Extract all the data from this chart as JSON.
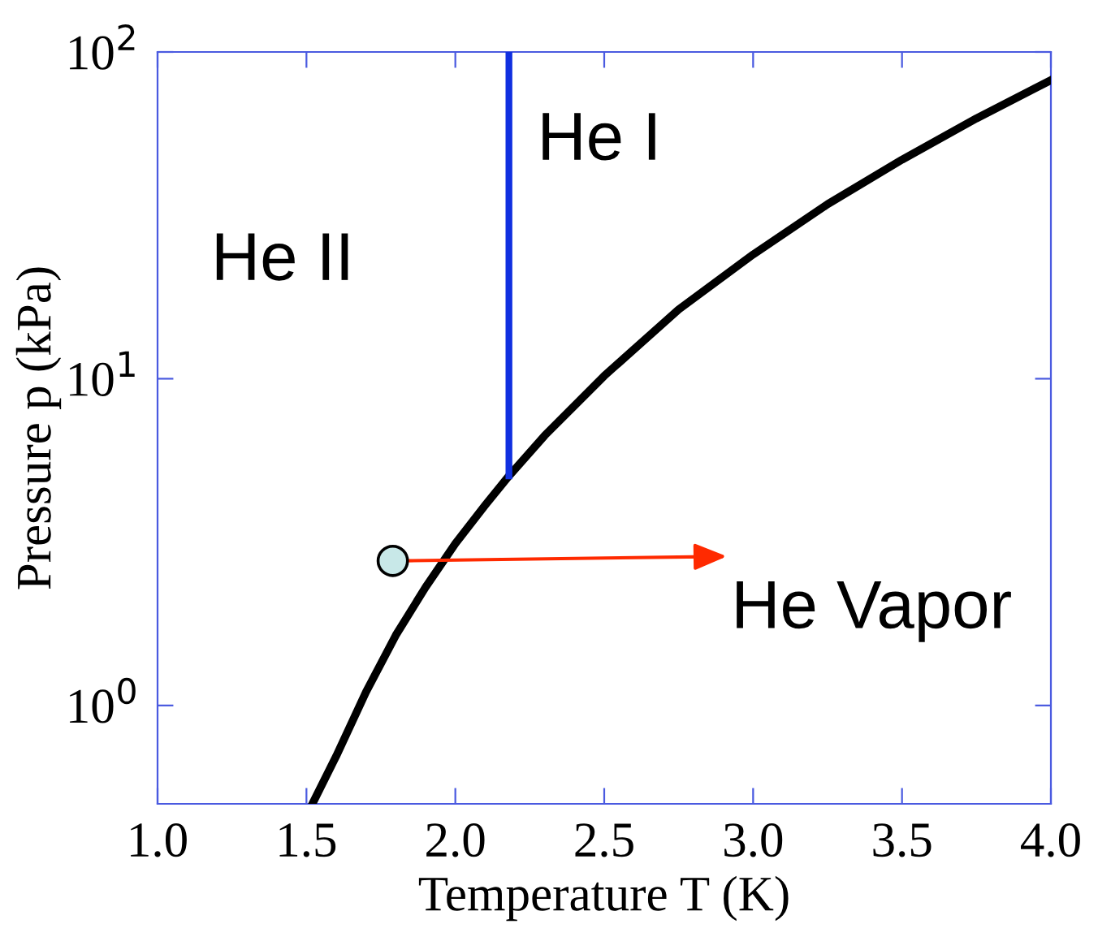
{
  "chart_data": {
    "type": "line",
    "xlabel": "Temperature T (K)",
    "ylabel": "Pressure p (kPa)",
    "log": "y",
    "xlim": [
      1.0,
      4.0
    ],
    "xticks": [
      {
        "value": 1.0,
        "label": "1.0"
      },
      {
        "value": 1.5,
        "label": "1.5"
      },
      {
        "value": 2.0,
        "label": "2.0"
      },
      {
        "value": 2.5,
        "label": "2.5"
      },
      {
        "value": 3.0,
        "label": "3.0"
      },
      {
        "value": 3.5,
        "label": "3.5"
      },
      {
        "value": 4.0,
        "label": "4.0"
      }
    ],
    "ylim": [
      0.5,
      100
    ],
    "yticks": [
      {
        "value": 1,
        "label": "10$^{0}$"
      },
      {
        "value": 10,
        "label": "10$^{1}$"
      },
      {
        "value": 100,
        "label": "10$^{2}$"
      }
    ],
    "grid": false,
    "series": [
      {
        "color": "#000000",
        "x": [
          1.52,
          1.6,
          1.7,
          1.8,
          1.9,
          2.0,
          2.1,
          2.18,
          2.3,
          2.5,
          2.75,
          3.0,
          3.25,
          3.5,
          3.75,
          4.0
        ],
        "values": [
          0.5,
          0.7,
          1.1,
          1.64,
          2.3,
          3.13,
          4.1,
          5.04,
          6.7,
          10.2,
          16.3,
          24.0,
          34.2,
          46.8,
          62.6,
          82.0
        ]
      },
      {
        "color": "#1030e0",
        "x": [
          2.18,
          2.18
        ],
        "values": [
          5.04,
          100
        ]
      },
      {
        "type": "scatter",
        "color": "#c8e8e8",
        "marker": "circle",
        "x": [
          1.79
        ],
        "values": [
          2.77
        ]
      }
    ],
    "annotations": [
      "He I",
      "He II",
      {
        "text": "He Vapor",
        "x": 1.79,
        "y": 2.77
      }
    ]
  }
}
